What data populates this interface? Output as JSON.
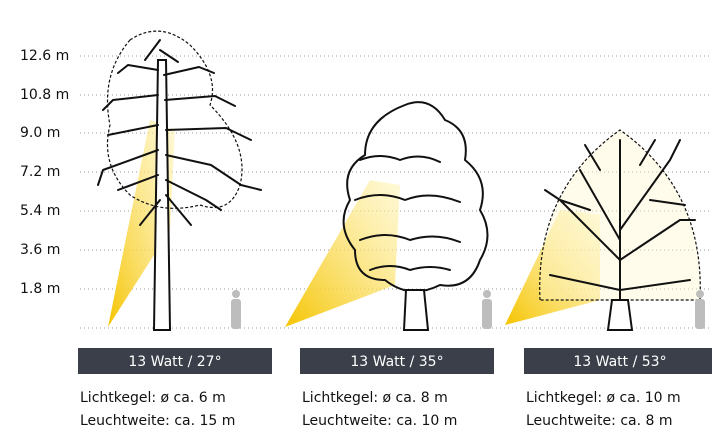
{
  "scale": {
    "labels": [
      "12.6 m",
      "10.8 m",
      "9.0 m",
      "7.2 m",
      "5.4 m",
      "3.6 m",
      "1.8 m"
    ]
  },
  "panels": [
    {
      "title": "13 Watt / 27°",
      "cone": "Lichtkegel:  ø ca. 6 m",
      "range": "Leuchtweite: ca. 15 m"
    },
    {
      "title": "13 Watt / 35°",
      "cone": "Lichtkegel:  ø ca. 8 m",
      "range": "Leuchtweite: ca. 10 m"
    },
    {
      "title": "13 Watt / 53°",
      "cone": "Lichtkegel:  ø ca. 10 m",
      "range": "Leuchtweite: ca. 8 m"
    }
  ]
}
